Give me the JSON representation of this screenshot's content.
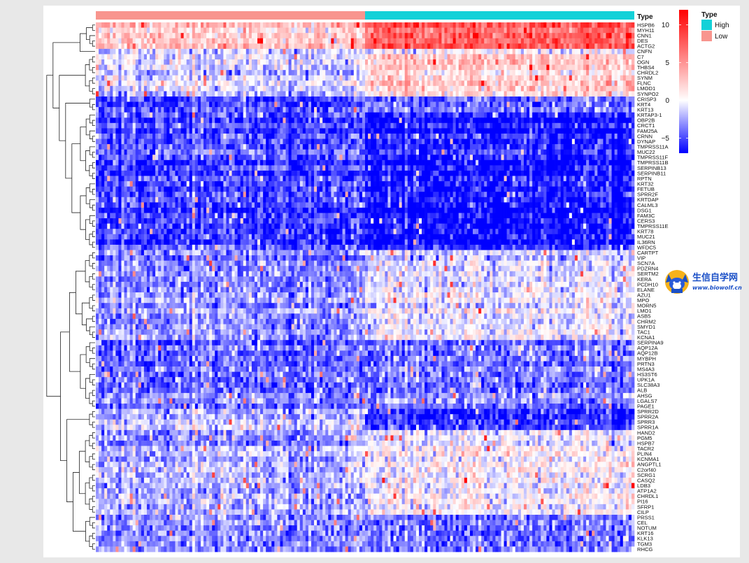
{
  "chart_data": {
    "type": "heatmap",
    "annotation": {
      "title": "Type",
      "groups": [
        {
          "name": "Low",
          "color": "#F8958E",
          "count": 95
        },
        {
          "name": "High",
          "color": "#14D1D8",
          "count": 95
        }
      ]
    },
    "color_scale": {
      "min": -7,
      "max": 12,
      "low_color": "#0000FF",
      "mid_color": "#FFFFFF",
      "high_color": "#FF0000",
      "ticks": [
        10,
        5,
        0,
        -5
      ]
    },
    "genes": [
      "HSPB6",
      "MYH11",
      "CNN1",
      "DES",
      "ACTG2",
      "CNFN",
      "C7",
      "OGN",
      "THBS4",
      "CHRDL2",
      "SYNM",
      "FLNC",
      "LMOD1",
      "SYNPO2",
      "CRISP3",
      "KRT4",
      "KRT13",
      "KRTAP3-1",
      "OBP2B",
      "CRCT1",
      "FAM25A",
      "CRNN",
      "DYNAP",
      "TMPRSS11A",
      "MUC22",
      "TMPRSS11F",
      "TMPRSS11B",
      "SERPINB13",
      "SERPINB11",
      "RPTN",
      "KRT32",
      "FETUB",
      "SPRR2F",
      "KRTDAP",
      "CALML3",
      "DSG1",
      "FAM3C",
      "CERS3",
      "TMPRSS11E",
      "KRT78",
      "MUC21",
      "IL36RN",
      "WFDC5",
      "CARTPT",
      "VIP",
      "SCN7A",
      "PDZRN4",
      "SERTM2",
      "KERA",
      "PCDH10",
      "ELANE",
      "AZU1",
      "MPO",
      "MORN5",
      "LMO1",
      "ASB5",
      "CHRM2",
      "SMYD1",
      "TAC1",
      "KCNA1",
      "SERPINA9",
      "AQP12A",
      "AQP12B",
      "MYBPH",
      "PRTN3",
      "MS4A3",
      "HS3ST6",
      "UPK1A",
      "SLC38A3",
      "ALB",
      "AHSG",
      "LGALS7",
      "PAGE1",
      "SPRR2D",
      "SPRR2A",
      "SPRR3",
      "SPRR1A",
      "HAND2",
      "PGM5",
      "HSPB7",
      "TACR2",
      "PLIN4",
      "KCNMA1",
      "ANGPTL1",
      "C2orf40",
      "SCRG1",
      "CASQ2",
      "LDB3",
      "ATP1A2",
      "CHRDL1",
      "PI16",
      "SFRP1",
      "CILP",
      "PRSS1",
      "CEL",
      "NOTUM",
      "KRT16",
      "KLK13",
      "TGM3",
      "RHCG"
    ],
    "gene_block_means": [
      {
        "genes": [
          "HSPB6",
          "MYH11",
          "CNN1",
          "DES",
          "ACTG2"
        ],
        "Low": 2.5,
        "High": 7.5
      },
      {
        "genes": [
          "CNFN"
        ],
        "Low": -0.5,
        "High": 0.5
      },
      {
        "genes": [
          "C7",
          "OGN",
          "THBS4",
          "CHRDL2",
          "SYNM",
          "FLNC",
          "LMOD1",
          "SYNPO2"
        ],
        "Low": -1.0,
        "High": 2.5
      },
      {
        "genes": [
          "CRISP3",
          "KRT4",
          "KRT13"
        ],
        "Low": -5.0,
        "High": -4.0
      },
      {
        "genes": [
          "KRTAP3-1",
          "OBP2B",
          "CRCT1",
          "FAM25A",
          "CRNN",
          "DYNAP",
          "TMPRSS11A",
          "MUC22",
          "TMPRSS11F",
          "TMPRSS11B",
          "SERPINB13",
          "SERPINB11",
          "RPTN",
          "KRT32",
          "FETUB",
          "SPRR2F",
          "KRTDAP",
          "CALML3",
          "DSG1",
          "FAM3C",
          "CERS3",
          "TMPRSS11E",
          "KRT78",
          "MUC21",
          "IL36RN",
          "WFDC5"
        ],
        "Low": -5.0,
        "High": -6.5
      },
      {
        "genes": [
          "CARTPT",
          "VIP",
          "SCN7A",
          "PDZRN4",
          "SERTM2",
          "KERA",
          "PCDH10",
          "ELANE",
          "AZU1",
          "MPO",
          "MORN5",
          "LMO1",
          "ASB5",
          "CHRM2",
          "SMYD1",
          "TAC1",
          "KCNA1"
        ],
        "Low": -3.0,
        "High": -0.5
      },
      {
        "genes": [
          "SERPINA9",
          "AQP12A",
          "AQP12B",
          "MYBPH",
          "PRTN3",
          "MS4A3",
          "HS3ST6",
          "UPK1A",
          "SLC38A3",
          "ALB",
          "AHSG",
          "LGALS7",
          "PAGE1"
        ],
        "Low": -4.0,
        "High": -3.5
      },
      {
        "genes": [
          "SPRR2D",
          "SPRR2A",
          "SPRR3",
          "SPRR1A"
        ],
        "Low": -2.0,
        "High": -6.0
      },
      {
        "genes": [
          "HAND2",
          "PGM5",
          "HSPB7",
          "TACR2",
          "PLIN4",
          "KCNMA1",
          "ANGPTL1",
          "C2orf40",
          "SCRG1",
          "CASQ2",
          "LDB3",
          "ATP1A2",
          "CHRDL1",
          "PI16",
          "SFRP1",
          "CILP"
        ],
        "Low": -2.0,
        "High": 0.5
      },
      {
        "genes": [
          "PRSS1",
          "CEL",
          "NOTUM",
          "KRT16",
          "KLK13",
          "TGM3",
          "RHCG"
        ],
        "Low": -3.0,
        "High": -3.5
      }
    ],
    "legend_placement": "top-right"
  },
  "watermark": {
    "title": "生信自学网",
    "url": "www.biowolf.cn",
    "color": "#1A4FC7"
  }
}
